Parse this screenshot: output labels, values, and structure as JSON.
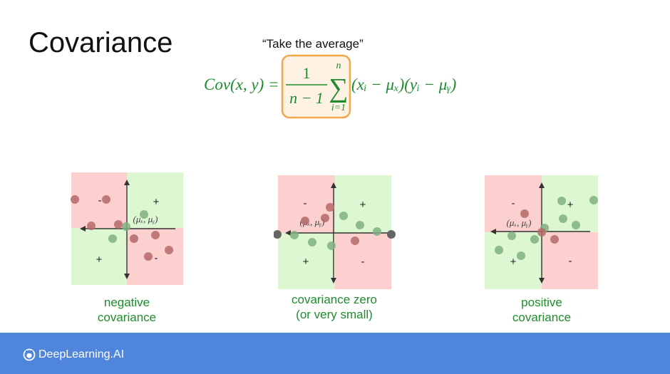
{
  "slide": {
    "title": "Covariance",
    "quote": "“Take the average”"
  },
  "formula": {
    "lhs": "Cov(x, y) =",
    "numerator": "1",
    "denominator": "n − 1",
    "sum_upper": "n",
    "sum_lower": "i=1",
    "sigma": "∑",
    "summand": "(xᵢ − μₓ)(yᵢ − μᵧ)",
    "highlight_color": "#f2a84b"
  },
  "colors": {
    "positive_quadrant": "#dcf7d2",
    "negative_quadrant": "#fbd0cf",
    "green_text": "#1e8c2d",
    "point_in_red": "#b56a6a",
    "point_in_green": "#7fb07f",
    "footer": "#4f86db"
  },
  "panels": [
    {
      "id": "negative",
      "caption_line1": "negative",
      "caption_line2": "covariance",
      "mean_label": "(μₓ, μᵧ)",
      "quadrant_signs": {
        "top_left": "-",
        "top_right": "+",
        "bottom_left": "+",
        "bottom_right": "-"
      }
    },
    {
      "id": "zero",
      "caption_line1": "covariance zero",
      "caption_line2": "(or very small)",
      "mean_label": "(μₓ, μᵧ)",
      "quadrant_signs": {
        "top_left": "-",
        "top_right": "+",
        "bottom_left": "+",
        "bottom_right": "-"
      }
    },
    {
      "id": "positive",
      "caption_line1": "positive",
      "caption_line2": "covariance",
      "mean_label": "(μₓ, μᵧ)",
      "quadrant_signs": {
        "top_left": "-",
        "top_right": "+",
        "bottom_left": "+",
        "bottom_right": "-"
      }
    }
  ],
  "footer": {
    "brand": "DeepLearning.AI"
  }
}
